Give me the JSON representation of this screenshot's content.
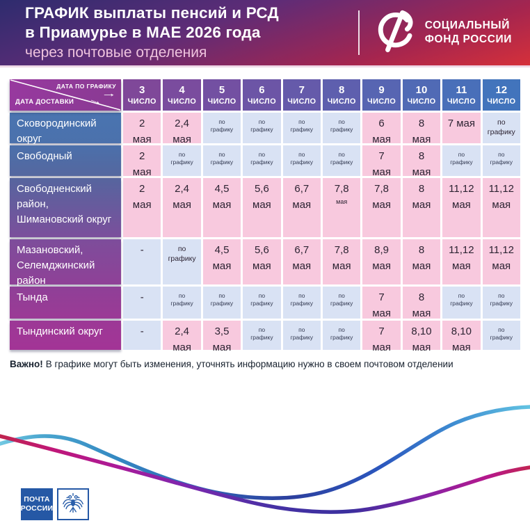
{
  "header": {
    "title_line1": "ГРАФИК выплаты пенсий и РСД",
    "title_line2": "в Приамурье в МАЕ 2026 года",
    "subtitle": "через почтовые отделения",
    "logo_text_line1": "СОЦИАЛЬНЫЙ",
    "logo_text_line2": "ФОНД РОССИИ"
  },
  "table": {
    "corner": {
      "top_label": "ДАТА ПО ГРАФИКУ",
      "bottom_label": "ДАТА ДОСТАВКИ"
    },
    "columns": [
      {
        "num": "3",
        "unit": "ЧИСЛО"
      },
      {
        "num": "4",
        "unit": "ЧИСЛО"
      },
      {
        "num": "5",
        "unit": "ЧИСЛО"
      },
      {
        "num": "6",
        "unit": "ЧИСЛО"
      },
      {
        "num": "7",
        "unit": "ЧИСЛО"
      },
      {
        "num": "8",
        "unit": "ЧИСЛО"
      },
      {
        "num": "9",
        "unit": "ЧИСЛО"
      },
      {
        "num": "10",
        "unit": "ЧИСЛО"
      },
      {
        "num": "11",
        "unit": "ЧИСЛО"
      },
      {
        "num": "12",
        "unit": "ЧИСЛО"
      }
    ],
    "rows": [
      {
        "name": "Сковородинский округ",
        "cells": [
          {
            "lines": [
              "2",
              "мая"
            ],
            "cls": "pink date"
          },
          {
            "lines": [
              "2,4",
              "мая"
            ],
            "cls": "pink date"
          },
          {
            "lines": [
              "по",
              "графику"
            ],
            "cls": "blue small"
          },
          {
            "lines": [
              "по",
              "графику"
            ],
            "cls": "blue small"
          },
          {
            "lines": [
              "по",
              "графику"
            ],
            "cls": "blue small"
          },
          {
            "lines": [
              "по",
              "графику"
            ],
            "cls": "blue small"
          },
          {
            "lines": [
              "6",
              "мая"
            ],
            "cls": "pink date"
          },
          {
            "lines": [
              "8",
              "мая"
            ],
            "cls": "pink date"
          },
          {
            "lines": [
              "7 мая"
            ],
            "cls": "pink date"
          },
          {
            "lines": [
              "по",
              "графику"
            ],
            "cls": "blue mid"
          }
        ]
      },
      {
        "name": "Свободный",
        "cells": [
          {
            "lines": [
              "2",
              "мая"
            ],
            "cls": "pink date"
          },
          {
            "lines": [
              "по",
              "графику"
            ],
            "cls": "blue small"
          },
          {
            "lines": [
              "по",
              "графику"
            ],
            "cls": "blue small"
          },
          {
            "lines": [
              "по",
              "графику"
            ],
            "cls": "blue small"
          },
          {
            "lines": [
              "по",
              "графику"
            ],
            "cls": "blue small"
          },
          {
            "lines": [
              "по",
              "графику"
            ],
            "cls": "blue small"
          },
          {
            "lines": [
              "7",
              "мая"
            ],
            "cls": "pink date"
          },
          {
            "lines": [
              "8",
              "мая"
            ],
            "cls": "pink date"
          },
          {
            "lines": [
              "по",
              "графику"
            ],
            "cls": "blue small"
          },
          {
            "lines": [
              "по",
              "графику"
            ],
            "cls": "blue small"
          }
        ]
      },
      {
        "name": "Свободненский район, Шимановский округ",
        "cells": [
          {
            "lines": [
              "2",
              "мая"
            ],
            "cls": "pink date"
          },
          {
            "lines": [
              "2,4",
              "мая"
            ],
            "cls": "pink date"
          },
          {
            "lines": [
              "4,5",
              "мая"
            ],
            "cls": "pink date"
          },
          {
            "lines": [
              "5,6",
              "мая"
            ],
            "cls": "pink date"
          },
          {
            "lines": [
              "6,7",
              "мая"
            ],
            "cls": "pink date"
          },
          {
            "lines": [
              "7,8",
              "мая"
            ],
            "cls": "pink date usm"
          },
          {
            "lines": [
              "7,8",
              "мая"
            ],
            "cls": "pink date"
          },
          {
            "lines": [
              "8",
              "мая"
            ],
            "cls": "pink date"
          },
          {
            "lines": [
              "11,12",
              "мая"
            ],
            "cls": "pink date"
          },
          {
            "lines": [
              "11,12",
              "мая"
            ],
            "cls": "pink date"
          }
        ]
      },
      {
        "name": "Мазановский, Селемджинский район",
        "cells": [
          {
            "lines": [
              "-"
            ],
            "cls": "blue date"
          },
          {
            "lines": [
              "по",
              "графику"
            ],
            "cls": "blue mid"
          },
          {
            "lines": [
              "4,5",
              "мая"
            ],
            "cls": "pink date"
          },
          {
            "lines": [
              "5,6",
              "мая"
            ],
            "cls": "pink date"
          },
          {
            "lines": [
              "6,7",
              "мая"
            ],
            "cls": "pink date"
          },
          {
            "lines": [
              "7,8",
              "мая"
            ],
            "cls": "pink date"
          },
          {
            "lines": [
              "8,9",
              "мая"
            ],
            "cls": "pink date"
          },
          {
            "lines": [
              "8",
              "мая"
            ],
            "cls": "pink date"
          },
          {
            "lines": [
              "11,12",
              "мая"
            ],
            "cls": "pink date"
          },
          {
            "lines": [
              "11,12",
              "мая"
            ],
            "cls": "pink date"
          }
        ]
      },
      {
        "name": "Тында",
        "cells": [
          {
            "lines": [
              "-"
            ],
            "cls": "blue date"
          },
          {
            "lines": [
              "по",
              "графику"
            ],
            "cls": "blue small"
          },
          {
            "lines": [
              "по",
              "графику"
            ],
            "cls": "blue small"
          },
          {
            "lines": [
              "по",
              "графику"
            ],
            "cls": "blue small"
          },
          {
            "lines": [
              "по",
              "графику"
            ],
            "cls": "blue small"
          },
          {
            "lines": [
              "по",
              "графику"
            ],
            "cls": "blue small"
          },
          {
            "lines": [
              "7",
              "мая"
            ],
            "cls": "pink date"
          },
          {
            "lines": [
              "8",
              "мая"
            ],
            "cls": "pink date"
          },
          {
            "lines": [
              "по",
              "графику"
            ],
            "cls": "blue small"
          },
          {
            "lines": [
              "по",
              "графику"
            ],
            "cls": "blue small"
          }
        ]
      },
      {
        "name": "Тындинский округ",
        "cells": [
          {
            "lines": [
              "-"
            ],
            "cls": "blue date"
          },
          {
            "lines": [
              "2,4",
              "мая"
            ],
            "cls": "pink date"
          },
          {
            "lines": [
              "3,5",
              "мая"
            ],
            "cls": "pink date"
          },
          {
            "lines": [
              "по",
              "графику"
            ],
            "cls": "blue small"
          },
          {
            "lines": [
              "по",
              "графику"
            ],
            "cls": "blue small"
          },
          {
            "lines": [
              "по",
              "графику"
            ],
            "cls": "blue small"
          },
          {
            "lines": [
              "7",
              "мая"
            ],
            "cls": "pink date"
          },
          {
            "lines": [
              "8,10",
              "мая"
            ],
            "cls": "pink date"
          },
          {
            "lines": [
              "8,10",
              "мая"
            ],
            "cls": "pink date"
          },
          {
            "lines": [
              "по",
              "графику"
            ],
            "cls": "blue small"
          }
        ]
      }
    ]
  },
  "footnote": {
    "bold": "Важно!",
    "text": "В графике могут быть изменения, уточнять информацию нужно в своем почтовом отделении"
  },
  "footer": {
    "post_logo_line1": "ПОЧТА",
    "post_logo_line2": "РОССИИ"
  },
  "colors": {
    "header_gradient": [
      "#2e2c6e",
      "#5e2c77",
      "#a5254f",
      "#d5303a"
    ],
    "pink_cell": "#f8c9de",
    "blue_cell": "#d9e2f4",
    "col_headers": [
      "#7f4899",
      "#7a4c9e",
      "#7350a2",
      "#6c55a6",
      "#655aaa",
      "#5e5fae",
      "#5765b2",
      "#506ab5",
      "#496fb9",
      "#4274bc"
    ],
    "row_labels": [
      [
        "#4a74b0",
        "#4b71ac"
      ],
      [
        "#4b70ab",
        "#55679f"
      ],
      [
        "#56659e",
        "#7b4f9c"
      ],
      [
        "#7d4d9b",
        "#8f4197"
      ],
      [
        "#8f4097",
        "#9b3a96"
      ],
      [
        "#9c3996",
        "#a33496"
      ]
    ],
    "post_blue": "#2558a5",
    "wave_blue": [
      "#72c8e2",
      "#2c3f9e",
      "#62c3e2"
    ],
    "wave_magenta": [
      "#c0244e",
      "#3b2f9e",
      "#c22553"
    ]
  }
}
